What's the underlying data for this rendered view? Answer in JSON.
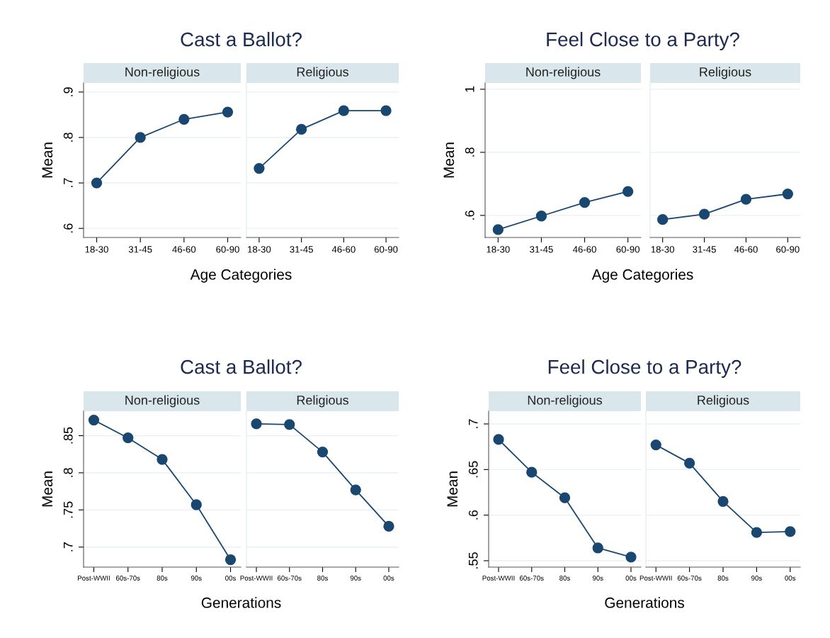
{
  "chart_data": [
    {
      "type": "line",
      "title": "Cast a Ballot?",
      "subtitle": "Non-religious",
      "xlabel": "Age Categories",
      "ylabel": "Mean",
      "categories": [
        "18-30",
        "31-45",
        "46-60",
        "60-90"
      ],
      "ylim": [
        0.58,
        0.92
      ],
      "yticks": [
        {
          "value": 0.6,
          "label": ".6"
        },
        {
          "value": 0.7,
          "label": ".7"
        },
        {
          "value": 0.8,
          "label": ".8"
        },
        {
          "value": 0.9,
          "label": ".9"
        }
      ],
      "grid": "y",
      "marker": "circle",
      "color": "#1a476f",
      "values": [
        0.7,
        0.8,
        0.84,
        0.856
      ]
    },
    {
      "type": "line",
      "subtitle": "Religious",
      "categories": [
        "18-30",
        "31-45",
        "46-60",
        "60-90"
      ],
      "ylim": [
        0.58,
        0.92
      ],
      "yticks": [
        {
          "value": 0.6,
          "label": null
        },
        {
          "value": 0.7,
          "label": null
        },
        {
          "value": 0.8,
          "label": null
        },
        {
          "value": 0.9,
          "label": null
        }
      ],
      "tick_labels": "x",
      "grid": "y",
      "marker": "circle",
      "color": "#1a476f",
      "values": [
        0.732,
        0.818,
        0.859,
        0.859
      ]
    },
    {
      "type": "line",
      "title": "Feel Close to a Party?",
      "subtitle": "Non-religious",
      "xlabel": "Age Categories",
      "ylabel": "Mean",
      "categories": [
        "18-30",
        "31-45",
        "46-60",
        "60-90"
      ],
      "ylim": [
        0.53,
        1.02
      ],
      "yticks": [
        {
          "value": 0.6,
          "label": ".6"
        },
        {
          "value": 0.8,
          "label": ".8"
        },
        {
          "value": 1,
          "label": "1"
        }
      ],
      "grid": "y",
      "marker": "circle",
      "color": "#1a476f",
      "values": [
        0.555,
        0.598,
        0.641,
        0.676
      ]
    },
    {
      "type": "line",
      "subtitle": "Religious",
      "categories": [
        "18-30",
        "31-45",
        "46-60",
        "60-90"
      ],
      "ylim": [
        0.53,
        1.02
      ],
      "yticks": [
        {
          "value": 0.6,
          "label": null
        },
        {
          "value": 0.8,
          "label": null
        },
        {
          "value": 1,
          "label": null
        }
      ],
      "tick_labels": "x",
      "grid": "y",
      "marker": "circle",
      "color": "#1a476f",
      "values": [
        0.587,
        0.604,
        0.651,
        0.668
      ]
    },
    {
      "type": "line",
      "title": "Cast a Ballot?",
      "subtitle": "Non-religious",
      "xlabel": "Generations",
      "ylabel": "Mean",
      "categories": [
        "Post-WWII",
        "60s-70s",
        "80s",
        "90s",
        "00s"
      ],
      "ylim": [
        0.673,
        0.883
      ],
      "yticks": [
        {
          "value": 0.7,
          "label": ".7"
        },
        {
          "value": 0.75,
          "label": ".75"
        },
        {
          "value": 0.8,
          "label": ".8"
        },
        {
          "value": 0.85,
          "label": ".85"
        }
      ],
      "grid": "y",
      "marker": "circle",
      "color": "#1a476f",
      "values": [
        0.871,
        0.847,
        0.818,
        0.757,
        0.683
      ]
    },
    {
      "type": "line",
      "subtitle": "Religious",
      "categories": [
        "Post-WWII",
        "60s-70s",
        "80s",
        "90s",
        "00s"
      ],
      "ylim": [
        0.673,
        0.883
      ],
      "yticks": [
        {
          "value": 0.7,
          "label": null
        },
        {
          "value": 0.75,
          "label": null
        },
        {
          "value": 0.8,
          "label": null
        },
        {
          "value": 0.85,
          "label": null
        }
      ],
      "tick_labels": "x",
      "grid": "y",
      "marker": "circle",
      "color": "#1a476f",
      "values": [
        0.866,
        0.865,
        0.828,
        0.777,
        0.728
      ]
    },
    {
      "type": "line",
      "title": "Feel Close to a Party?",
      "subtitle": "Non-religious",
      "xlabel": "Generations",
      "ylabel": "Mean",
      "categories": [
        "Post-WWII",
        "60s-70s",
        "80s",
        "90s",
        "00s"
      ],
      "ylim": [
        0.543,
        0.714
      ],
      "yticks": [
        {
          "value": 0.55,
          "label": ".55"
        },
        {
          "value": 0.6,
          "label": ".6"
        },
        {
          "value": 0.65,
          "label": ".65"
        },
        {
          "value": 0.7,
          "label": ".7"
        }
      ],
      "grid": "y",
      "marker": "circle",
      "color": "#1a476f",
      "values": [
        0.683,
        0.647,
        0.619,
        0.564,
        0.554
      ]
    },
    {
      "type": "line",
      "subtitle": "Religious",
      "categories": [
        "Post-WWII",
        "60s-70s",
        "80s",
        "90s",
        "00s"
      ],
      "ylim": [
        0.543,
        0.714
      ],
      "yticks": [
        {
          "value": 0.55,
          "label": null
        },
        {
          "value": 0.6,
          "label": null
        },
        {
          "value": 0.65,
          "label": null
        },
        {
          "value": 0.7,
          "label": null
        }
      ],
      "tick_labels": "x",
      "grid": "y",
      "marker": "circle",
      "color": "#1a476f",
      "values": [
        0.677,
        0.657,
        0.615,
        0.581,
        0.582
      ]
    }
  ]
}
